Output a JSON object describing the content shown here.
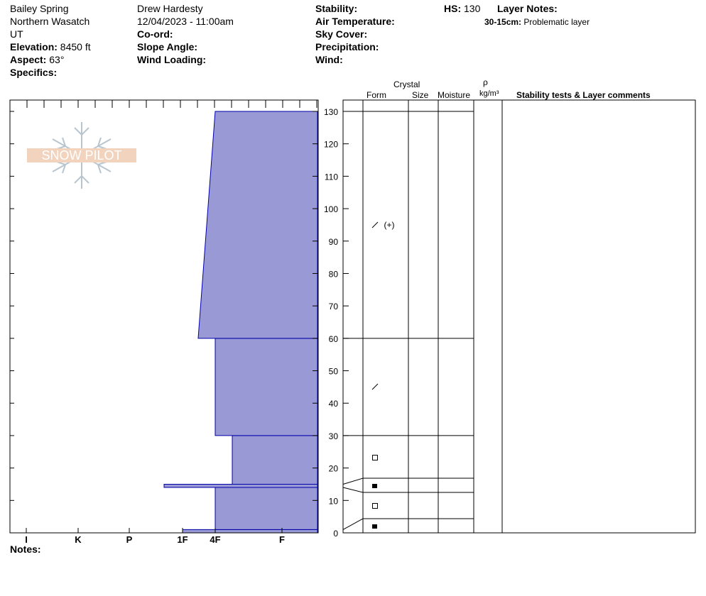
{
  "header": {
    "location": "Bailey Spring",
    "range": "Northern Wasatch",
    "state": "UT",
    "elevation_label": "Elevation:",
    "elevation": "8450 ft",
    "aspect_label": "Aspect:",
    "aspect": "63°",
    "specifics_label": "Specifics:",
    "observer": "Drew Hardesty",
    "datetime": "12/04/2023 - 11:00am",
    "coord_label": "Co-ord:",
    "slope_label": "Slope Angle:",
    "wind_loading_label": "Wind Loading:",
    "stability_label": "Stability:",
    "air_temp_label": "Air Temperature:",
    "sky_label": "Sky Cover:",
    "precip_label": "Precipitation:",
    "wind_label": "Wind:",
    "hs_label": "HS:",
    "hs_value": "130",
    "layer_notes_label": "Layer Notes:",
    "layer_note_range": "30-15cm:",
    "layer_note_text": "Problematic layer"
  },
  "columns": {
    "crystal": "Crystal",
    "form": "Form",
    "size": "Size",
    "moisture": "Moisture",
    "rho": "ρ",
    "density_unit": "kg/m³",
    "comments": "Stability tests & Layer comments"
  },
  "logo_text": "SNOW PILOT",
  "notes_label": "Notes:",
  "colors": {
    "layer_fill": "#9999d6",
    "layer_stroke": "#0000aa"
  },
  "chart_data": {
    "type": "snow_profile",
    "depth_axis": {
      "ticks": [
        0,
        10,
        20,
        30,
        40,
        50,
        60,
        70,
        80,
        90,
        100,
        110,
        120,
        130
      ]
    },
    "hardness_axis": {
      "labels": [
        "I",
        "K",
        "P",
        "1F",
        "4F",
        "F"
      ]
    },
    "layers": [
      {
        "bottom": 0,
        "top": 1,
        "hardness_bottom": "1F",
        "hardness_top": "1F",
        "grain": "faceted-rounded",
        "grain_icon": "filled-square-icon"
      },
      {
        "bottom": 1,
        "top": 14,
        "hardness_bottom": "4F",
        "hardness_top": "4F",
        "grain": "faceted",
        "grain_icon": "square-icon"
      },
      {
        "bottom": 14,
        "top": 15,
        "hardness_bottom": "1F-",
        "hardness_top": "1F-",
        "grain": "faceted-rounded",
        "grain_icon": "filled-square-icon"
      },
      {
        "bottom": 15,
        "top": 30,
        "hardness_bottom": "4F+",
        "hardness_top": "4F+",
        "grain": "faceted",
        "grain_icon": "square-icon"
      },
      {
        "bottom": 30,
        "top": 60,
        "hardness_bottom": "4F",
        "hardness_top": "4F",
        "grain": "decomposing",
        "grain_icon": "slash-icon"
      },
      {
        "bottom": 60,
        "top": 130,
        "hardness_bottom": "1F+",
        "hardness_top": "4F",
        "grain": "decomposing (new snow)",
        "grain_icon": "slash-newsnow-icon"
      }
    ]
  }
}
